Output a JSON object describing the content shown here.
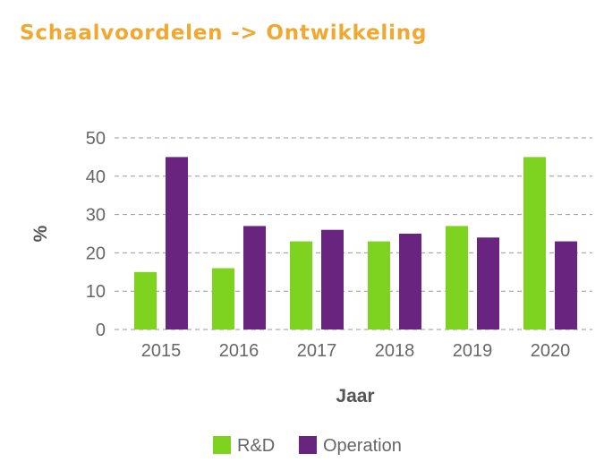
{
  "title": "Schaalvoordelen -> Ontwikkeling",
  "chart_data": {
    "type": "bar",
    "categories": [
      "2015",
      "2016",
      "2017",
      "2018",
      "2019",
      "2020"
    ],
    "series": [
      {
        "name": "R&D",
        "color": "#7ed321",
        "values": [
          15,
          16,
          23,
          23,
          27,
          45
        ]
      },
      {
        "name": "Operation",
        "color": "#68247f",
        "values": [
          45,
          27,
          26,
          25,
          24,
          23
        ]
      }
    ],
    "xlabel": "Jaar",
    "ylabel": "%",
    "ylim": [
      0,
      50
    ],
    "yticks": [
      0,
      10,
      20,
      30,
      40,
      50
    ],
    "grid": true,
    "legend_position": "bottom-center"
  }
}
